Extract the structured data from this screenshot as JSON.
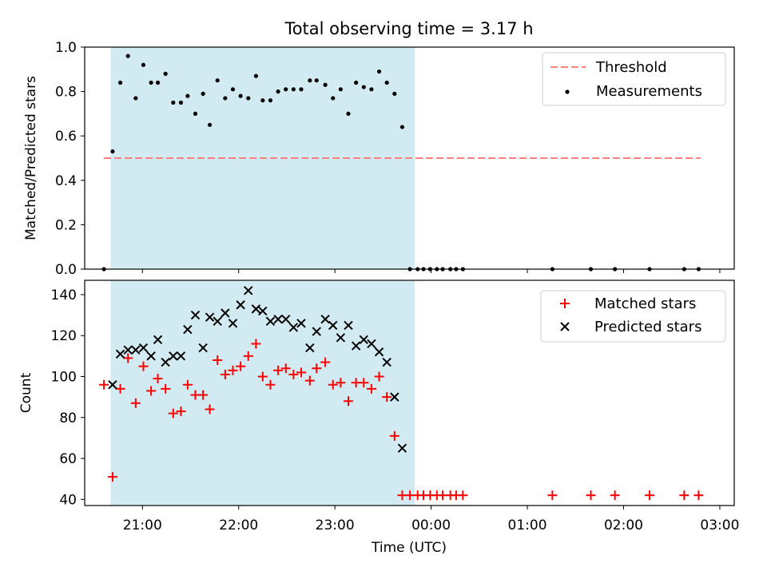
{
  "title": "Total observing time = 3.17 h",
  "xlabel": "Time (UTC)",
  "x_ticks": [
    "21:00",
    "22:00",
    "23:00",
    "00:00",
    "01:00",
    "02:00",
    "03:00"
  ],
  "colors": {
    "shade": "#add8e6",
    "threshold": "#ff7f7f",
    "measurement": "#000000",
    "matched": "#ff0000",
    "predicted": "#000000"
  },
  "chart_data": [
    {
      "type": "scatter",
      "ylabel": "Matched/Predicted stars",
      "ylim": [
        0,
        1.0
      ],
      "y_ticks": [
        "0.0",
        "0.2",
        "0.4",
        "0.6",
        "0.8",
        "1.0"
      ],
      "x_unit": "hours since 20:00 UTC",
      "xlim": [
        0.4,
        7.15
      ],
      "shaded_span": [
        0.67,
        3.83
      ],
      "legend_position": "top-right",
      "threshold": {
        "name": "Threshold",
        "y": 0.5,
        "x": [
          0.6,
          6.8
        ]
      },
      "series": [
        {
          "name": "Measurements",
          "marker": "dot",
          "x": [
            0.6,
            0.69,
            0.77,
            0.85,
            0.93,
            1.01,
            1.09,
            1.16,
            1.24,
            1.32,
            1.4,
            1.47,
            1.55,
            1.63,
            1.7,
            1.78,
            1.86,
            1.94,
            2.02,
            2.1,
            2.18,
            2.25,
            2.33,
            2.41,
            2.49,
            2.57,
            2.65,
            2.74,
            2.81,
            2.9,
            2.98,
            3.06,
            3.14,
            3.22,
            3.3,
            3.38,
            3.46,
            3.54,
            3.62,
            3.7,
            3.78,
            3.86,
            3.92,
            3.99,
            4.06,
            4.12,
            4.2,
            4.26,
            4.33,
            5.26,
            5.66,
            5.91,
            6.27,
            6.63,
            6.78
          ],
          "y": [
            0.0,
            0.53,
            0.84,
            0.96,
            0.77,
            0.92,
            0.84,
            0.84,
            0.88,
            0.75,
            0.75,
            0.78,
            0.7,
            0.79,
            0.65,
            0.85,
            0.77,
            0.81,
            0.78,
            0.77,
            0.87,
            0.76,
            0.76,
            0.8,
            0.81,
            0.81,
            0.81,
            0.85,
            0.85,
            0.83,
            0.77,
            0.81,
            0.7,
            0.84,
            0.82,
            0.81,
            0.89,
            0.84,
            0.79,
            0.64,
            0.0,
            0.0,
            0.0,
            0.0,
            0.0,
            0.0,
            0.0,
            0.0,
            0.0,
            0.0,
            0.0,
            0.0,
            0.0,
            0.0,
            0.0
          ]
        }
      ]
    },
    {
      "type": "scatter",
      "ylabel": "Count",
      "ylim": [
        37,
        147
      ],
      "y_ticks": [
        "40",
        "60",
        "80",
        "100",
        "120",
        "140"
      ],
      "x_unit": "hours since 20:00 UTC",
      "xlim": [
        0.4,
        7.15
      ],
      "shaded_span": [
        0.67,
        3.83
      ],
      "legend_position": "top-right",
      "series": [
        {
          "name": "Matched stars",
          "marker": "plus",
          "x": [
            0.6,
            0.69,
            0.77,
            0.85,
            0.93,
            1.01,
            1.09,
            1.16,
            1.24,
            1.32,
            1.4,
            1.47,
            1.55,
            1.63,
            1.7,
            1.78,
            1.86,
            1.94,
            2.02,
            2.1,
            2.18,
            2.25,
            2.33,
            2.41,
            2.49,
            2.57,
            2.65,
            2.74,
            2.81,
            2.9,
            2.98,
            3.06,
            3.14,
            3.22,
            3.3,
            3.38,
            3.46,
            3.54,
            3.62,
            3.7,
            3.78,
            3.86,
            3.92,
            3.99,
            4.06,
            4.12,
            4.2,
            4.26,
            4.33,
            5.26,
            5.66,
            5.91,
            6.27,
            6.63,
            6.78
          ],
          "y": [
            96,
            51,
            94,
            109,
            87,
            105,
            93,
            99,
            94,
            82,
            83,
            96,
            91,
            91,
            84,
            108,
            101,
            103,
            105,
            110,
            116,
            100,
            96,
            103,
            104,
            101,
            102,
            98,
            104,
            107,
            96,
            97,
            88,
            97,
            97,
            94,
            100,
            90,
            71,
            42,
            42,
            42,
            42,
            42,
            42,
            42,
            42,
            42,
            42,
            42,
            42,
            42,
            42,
            42,
            42
          ]
        },
        {
          "name": "Predicted stars",
          "marker": "cross",
          "x": [
            0.69,
            0.77,
            0.85,
            0.93,
            1.01,
            1.09,
            1.16,
            1.24,
            1.32,
            1.4,
            1.47,
            1.55,
            1.63,
            1.7,
            1.78,
            1.86,
            1.94,
            2.02,
            2.1,
            2.18,
            2.25,
            2.33,
            2.41,
            2.49,
            2.57,
            2.65,
            2.74,
            2.81,
            2.9,
            2.98,
            3.06,
            3.14,
            3.22,
            3.3,
            3.38,
            3.46,
            3.54,
            3.62,
            3.7
          ],
          "y": [
            96,
            111,
            113,
            113,
            114,
            110,
            118,
            107,
            110,
            110,
            123,
            130,
            114,
            129,
            127,
            131,
            126,
            135,
            142,
            133,
            132,
            127,
            128,
            128,
            124,
            126,
            114,
            122,
            128,
            125,
            119,
            125,
            115,
            118,
            116,
            112,
            107,
            90,
            65
          ]
        }
      ]
    }
  ]
}
